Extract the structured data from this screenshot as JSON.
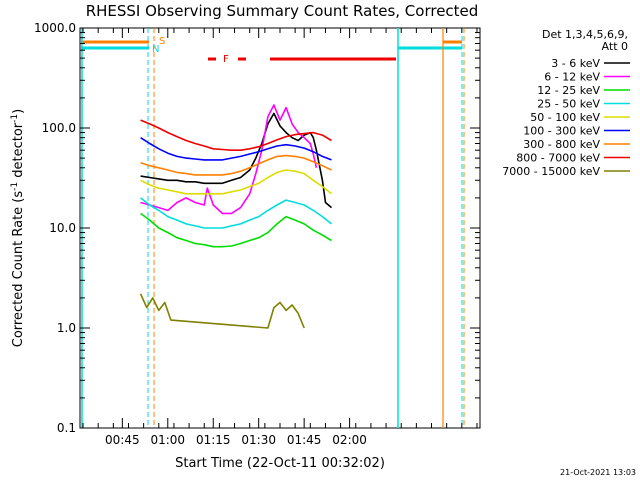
{
  "chart_data": {
    "type": "line",
    "title": "RHESSI Observing Summary Count Rates, Corrected",
    "xlabel": "Start Time (22-Oct-11 00:32:02)",
    "ylabel_main": "Corrected Count Rate (s",
    "ylabel_sup1": "-1",
    "ylabel_mid": " detector",
    "ylabel_sup2": "-1",
    "ylabel_end": ")",
    "yscale": "log",
    "ylim": [
      0.1,
      1000
    ],
    "xlim_minutes": [
      0,
      132
    ],
    "y_ticks": [
      {
        "value": 0.1,
        "label": "0.1"
      },
      {
        "value": 1,
        "label": "1.0"
      },
      {
        "value": 10,
        "label": "10.0"
      },
      {
        "value": 100,
        "label": "100.0"
      },
      {
        "value": 1000,
        "label": "1000.0"
      }
    ],
    "x_ticks": [
      {
        "minute": 13.97,
        "label": "00:45"
      },
      {
        "minute": 28.97,
        "label": "01:00"
      },
      {
        "minute": 43.97,
        "label": "01:15"
      },
      {
        "minute": 58.97,
        "label": "01:30"
      },
      {
        "minute": 73.97,
        "label": "01:45"
      },
      {
        "minute": 88.97,
        "label": "02:00"
      }
    ],
    "legend": {
      "placement": "right",
      "header_line1": "Det 1,3,4,5,6,9,",
      "header_line2": "Att 0"
    },
    "series": [
      {
        "name": "3 - 6 keV",
        "color": "#000000",
        "x": [
          20,
          23,
          26,
          29,
          32,
          35,
          38,
          41,
          44,
          47,
          50,
          53,
          56,
          58,
          60,
          62,
          64,
          66,
          68,
          70,
          72,
          74,
          76,
          77,
          78,
          80,
          81,
          83
        ],
        "y": [
          33,
          32,
          31,
          30,
          30,
          29,
          29,
          28,
          28,
          28,
          30,
          32,
          38,
          50,
          70,
          110,
          140,
          105,
          90,
          80,
          75,
          85,
          90,
          80,
          60,
          30,
          18,
          16
        ]
      },
      {
        "name": "6 - 12 keV",
        "color": "#ff00ff",
        "x": [
          20,
          23,
          26,
          29,
          32,
          35,
          38,
          41,
          42,
          44,
          47,
          50,
          53,
          56,
          58,
          60,
          62,
          64,
          66,
          68,
          70,
          72,
          74,
          76,
          77,
          78
        ],
        "y": [
          18,
          17,
          16,
          15,
          18,
          20,
          18,
          17,
          25,
          17,
          14,
          14,
          16,
          22,
          35,
          60,
          130,
          170,
          120,
          160,
          110,
          90,
          80,
          70,
          55,
          40
        ]
      },
      {
        "name": "12 - 25 keV",
        "color": "#00dd00",
        "x": [
          20,
          23,
          26,
          29,
          32,
          35,
          38,
          41,
          44,
          47,
          50,
          53,
          56,
          59,
          62,
          65,
          68,
          71,
          74,
          77,
          80,
          83
        ],
        "y": [
          14,
          12,
          10,
          9,
          8,
          7.5,
          7,
          6.8,
          6.5,
          6.5,
          6.6,
          7,
          7.5,
          8,
          9,
          11,
          13,
          12,
          11,
          9.5,
          8.5,
          7.5
        ]
      },
      {
        "name": "25 - 50 keV",
        "color": "#00dddd",
        "x": [
          20,
          23,
          26,
          29,
          32,
          35,
          38,
          41,
          44,
          47,
          50,
          53,
          56,
          59,
          62,
          65,
          68,
          71,
          74,
          77,
          80,
          83
        ],
        "y": [
          20,
          17,
          15,
          13,
          12,
          11,
          10.5,
          10,
          10,
          10,
          10.5,
          11,
          12,
          13,
          15,
          17,
          19,
          18,
          17,
          15,
          13,
          11
        ]
      },
      {
        "name": "50 - 100 keV",
        "color": "#dddd00",
        "x": [
          20,
          23,
          26,
          29,
          32,
          35,
          38,
          41,
          44,
          47,
          50,
          53,
          56,
          59,
          62,
          65,
          68,
          71,
          74,
          77,
          80,
          83
        ],
        "y": [
          30,
          27,
          25,
          24,
          23,
          22,
          22,
          22,
          22,
          22,
          23,
          24,
          26,
          28,
          32,
          36,
          38,
          37,
          35,
          30,
          26,
          22
        ]
      },
      {
        "name": "100 - 300 keV",
        "color": "#0000ff",
        "x": [
          20,
          23,
          26,
          29,
          32,
          35,
          38,
          41,
          44,
          47,
          50,
          53,
          56,
          59,
          62,
          65,
          68,
          71,
          74,
          77,
          80,
          83
        ],
        "y": [
          80,
          70,
          62,
          56,
          52,
          50,
          49,
          48,
          48,
          48,
          50,
          52,
          55,
          58,
          62,
          66,
          68,
          66,
          63,
          58,
          52,
          48
        ]
      },
      {
        "name": "300 - 800 keV",
        "color": "#ff8000",
        "x": [
          20,
          23,
          26,
          29,
          32,
          35,
          38,
          41,
          44,
          47,
          50,
          53,
          56,
          59,
          62,
          65,
          68,
          71,
          74,
          77,
          80,
          83
        ],
        "y": [
          45,
          42,
          40,
          38,
          36,
          35,
          34,
          34,
          34,
          34,
          35,
          37,
          40,
          44,
          48,
          52,
          53,
          52,
          50,
          46,
          42,
          38
        ]
      },
      {
        "name": "800 - 7000 keV",
        "color": "#ee0000",
        "x": [
          20,
          23,
          26,
          29,
          32,
          35,
          38,
          41,
          44,
          47,
          50,
          53,
          56,
          59,
          62,
          65,
          68,
          71,
          74,
          77,
          80,
          83
        ],
        "y": [
          120,
          110,
          100,
          90,
          82,
          75,
          70,
          66,
          62,
          61,
          60,
          60,
          62,
          65,
          70,
          76,
          82,
          86,
          88,
          90,
          85,
          75
        ]
      },
      {
        "name": "7000 - 15000 keV",
        "color": "#808000",
        "x": [
          20,
          22,
          24,
          26,
          28,
          30,
          62,
          64,
          66,
          68,
          70,
          72,
          74
        ],
        "y": [
          2.2,
          1.6,
          2.0,
          1.5,
          1.8,
          1.2,
          1.0,
          1.6,
          1.8,
          1.5,
          1.7,
          1.4,
          1.0
        ]
      }
    ],
    "bars": {
      "S_label": "S",
      "N_label": "N",
      "F_label": "F"
    },
    "footer_date": "21-Oct-2021 13:03"
  }
}
